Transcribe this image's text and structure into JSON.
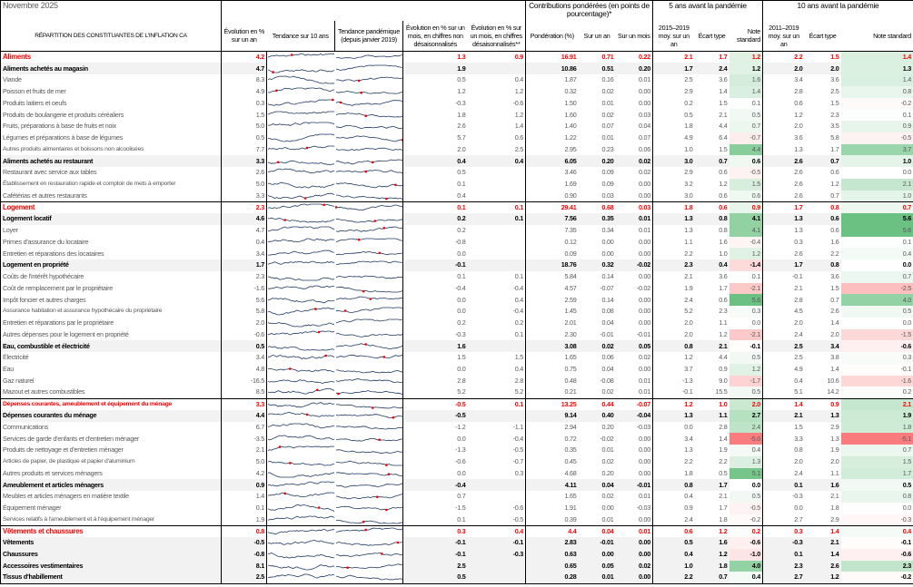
{
  "header": {
    "month": "Novembre 2025",
    "contrib": "Contributions pondérées (en points de pourcentage)*",
    "five": "5 ans avant la pandémie",
    "ten": "10 ans avant la pandémie",
    "cols": [
      "RÉPARTITION DES CONSTITUANTES DE L'INFLATION CA",
      "Évolution en % sur un an",
      "Tendance sur 10 ans",
      "Tendance pandémique (depuis janvier 2019)",
      "Évolution en % sur un mois, en chiffres non désaisonnalisés",
      "Évolution en % sur un mois, en chiffres désaisonnalisés**",
      "Pondération (%)",
      "Sur un an",
      "Sur un mois",
      "2015–2019 moy. sur un an",
      "Écart type",
      "Note standard",
      "2011–2019 moy. sur un an",
      "Écart type",
      "Note standard"
    ]
  },
  "colors": {
    "major": "#ff0000",
    "subtotal_bg": "#f2f2f2",
    "positive": "#63be7b",
    "negative": "#f8696b"
  },
  "rows": [
    [
      "Aliments",
      "M",
      "4.2",
      "1.3",
      "0.9",
      "16.91",
      "0.71",
      "0.22",
      "2.1",
      "1.7",
      "1.2",
      "2.2",
      "1.5",
      "1.4"
    ],
    [
      "Aliments achetés au magasin",
      "S",
      "4.7",
      "1.9",
      "",
      "10.86",
      "0.51",
      "0.20",
      "1.7",
      "2.4",
      "1.2",
      "2.0",
      "2.0",
      "1.3"
    ],
    [
      "Viande",
      "I",
      "8.3",
      "0.5",
      "0.4",
      "1.87",
      "0.16",
      "0.01",
      "2.5",
      "3.6",
      "1.6",
      "3.4",
      "3.6",
      "1.4"
    ],
    [
      "Poisson et fruits de mer",
      "I",
      "4.9",
      "1.2",
      "1.2",
      "0.32",
      "0.02",
      "0.00",
      "2.9",
      "1.4",
      "1.4",
      "2.8",
      "2.5",
      "0.8"
    ],
    [
      "Produits laitiers et oeufs",
      "I",
      "0.3",
      "-0.3",
      "-0.6",
      "1.50",
      "0.01",
      "0.00",
      "0.2",
      "1.5",
      "0.1",
      "0.6",
      "1.5",
      "-0.2"
    ],
    [
      "Produits de boulangerie et produits céréaliers",
      "I",
      "1.5",
      "1.8",
      "1.2",
      "1.60",
      "0.02",
      "0.03",
      "0.5",
      "2.1",
      "0.5",
      "1.2",
      "2.3",
      "0.1"
    ],
    [
      "Fruits, préparations à base de fruits et noix",
      "I",
      "5.0",
      "2.6",
      "1.4",
      "1.40",
      "0.07",
      "0.04",
      "1.8",
      "4.4",
      "0.7",
      "2.0",
      "3.5",
      "0.9"
    ],
    [
      "Légumes et préparations à base de légumes",
      "I",
      "0.5",
      "5.7",
      "0.6",
      "1.22",
      "0.01",
      "0.07",
      "4.9",
      "6.4",
      "-0.7",
      "3.6",
      "5.8",
      "-0.5"
    ],
    [
      "Autres produits alimentaires et boissons non alcoolisées",
      "I",
      "7.7",
      "2.0",
      "2.5",
      "2.95",
      "0.23",
      "0.06",
      "1.0",
      "1.5",
      "4.4",
      "1.3",
      "1.7",
      "3.7"
    ],
    [
      "Aliments achetés au restaurant",
      "S",
      "3.3",
      "0.4",
      "0.4",
      "6.05",
      "0.20",
      "0.02",
      "3.0",
      "0.7",
      "0.6",
      "2.6",
      "0.7",
      "1.0"
    ],
    [
      "Restaurant avec service aux tables",
      "I",
      "2.6",
      "0.5",
      "",
      "3.46",
      "0.09",
      "0.02",
      "2.9",
      "0.6",
      "-0.5",
      "2.6",
      "0.6",
      "0.0"
    ],
    [
      "Établissement en restauration rapide et comptoir de mets à emporter",
      "I",
      "5.0",
      "0.1",
      "",
      "1.69",
      "0.09",
      "0.00",
      "3.2",
      "1.2",
      "1.5",
      "2.6",
      "1.2",
      "2.1"
    ],
    [
      "Cafétérias et autres restaurants",
      "I",
      "3.3",
      "0.4",
      "",
      "0.90",
      "0.03",
      "0.00",
      "3.0",
      "0.6",
      "0.6",
      "2.6",
      "0.7",
      "1.0"
    ],
    [
      "Logement",
      "M",
      "2.3",
      "0.1",
      "0.1",
      "29.41",
      "0.68",
      "0.03",
      "1.8",
      "0.6",
      "0.9",
      "1.7",
      "0.8",
      "0.7"
    ],
    [
      "Logement locatif",
      "S",
      "4.6",
      "0.2",
      "0.1",
      "7.56",
      "0.35",
      "0.01",
      "1.3",
      "0.8",
      "4.1",
      "1.3",
      "0.6",
      "5.6"
    ],
    [
      "Loyer",
      "I",
      "4.7",
      "0.2",
      "",
      "7.35",
      "0.34",
      "0.01",
      "1.3",
      "0.8",
      "4.1",
      "1.3",
      "0.6",
      "5.6"
    ],
    [
      "Primes d'assurance du locataire",
      "I",
      "0.4",
      "-0.8",
      "",
      "0.12",
      "0.00",
      "0.00",
      "1.1",
      "1.6",
      "-0.4",
      "0.3",
      "1.6",
      "0.1"
    ],
    [
      "Entretien et réparations des locataires",
      "I",
      "3.4",
      "0.0",
      "",
      "0.09",
      "0.00",
      "0.00",
      "2.2",
      "1.0",
      "1.2",
      "2.6",
      "2.2",
      "0.4"
    ],
    [
      "Logement en propriété",
      "S",
      "1.7",
      "-0.1",
      "",
      "18.76",
      "0.32",
      "-0.02",
      "2.3",
      "0.4",
      "-1.4",
      "1.7",
      "0.8",
      "0.0"
    ],
    [
      "Coûts de l'intérêt hypothécaire",
      "I",
      "2.3",
      "0.1",
      "0.1",
      "5.84",
      "0.14",
      "0.00",
      "2.1",
      "3.6",
      "0.1",
      "-0.1",
      "3.6",
      "0.7"
    ],
    [
      "Coût de remplacement par le propriétaire",
      "I",
      "-1.6",
      "-0.4",
      "-0.4",
      "4.57",
      "-0.07",
      "-0.02",
      "1.9",
      "1.7",
      "-2.1",
      "2.1",
      "1.5",
      "-2.5"
    ],
    [
      "Impôt foncier et autres charges",
      "I",
      "5.6",
      "0.0",
      "0.4",
      "2.59",
      "0.14",
      "0.00",
      "2.4",
      "0.6",
      "5.6",
      "2.8",
      "0.7",
      "4.0"
    ],
    [
      "Assurance habitation et assurance hypothécaire du propriétaire",
      "I",
      "5.8",
      "0.0",
      "-0.4",
      "1.45",
      "0.08",
      "0.00",
      "5.2",
      "2.3",
      "0.3",
      "4.5",
      "2.6",
      "0.5"
    ],
    [
      "Entretien et réparations par le propriétaire",
      "I",
      "2.0",
      "0.2",
      "0.2",
      "2.01",
      "0.04",
      "0.00",
      "2.0",
      "1.1",
      "0.0",
      "2.0",
      "1.4",
      "0.0"
    ],
    [
      "Autres dépenses pour le logement en propriété",
      "I",
      "-0.6",
      "-0.3",
      "0.1",
      "2.30",
      "-0.01",
      "-0.01",
      "2.0",
      "1.2",
      "-2.1",
      "2.4",
      "2.0",
      "-1.5"
    ],
    [
      "Eau, combustible et électricité",
      "S",
      "0.5",
      "1.6",
      "",
      "3.08",
      "0.02",
      "0.05",
      "0.8",
      "2.1",
      "-0.1",
      "2.5",
      "3.4",
      "-0.6"
    ],
    [
      "Électricité",
      "I",
      "3.4",
      "1.5",
      "1.5",
      "1.65",
      "0.06",
      "0.02",
      "1.2",
      "4.4",
      "0.5",
      "2.5",
      "3.8",
      "0.3"
    ],
    [
      "Eau",
      "I",
      "4.8",
      "0.0",
      "0.4",
      "0.75",
      "0.04",
      "0.00",
      "3.7",
      "0.9",
      "1.2",
      "4.9",
      "1.4",
      "-0.1"
    ],
    [
      "Gaz naturel",
      "I",
      "-16.5",
      "2.8",
      "2.8",
      "0.48",
      "-0.08",
      "0.01",
      "-1.3",
      "9.0",
      "-1.7",
      "0.4",
      "10.6",
      "-1.6"
    ],
    [
      "Mazout et autres combustibles",
      "I",
      "8.5",
      "5.2",
      "5.2",
      "0.21",
      "0.02",
      "0.01",
      "-0.1",
      "15.5",
      "0.5",
      "5.1",
      "14.2",
      "0.2"
    ],
    [
      "Dépenses courantes, ameublement et équipement du ménage",
      "M",
      "3.3",
      "-0.5",
      "0.1",
      "13.25",
      "0.44",
      "-0.07",
      "1.2",
      "1.0",
      "2.0",
      "1.4",
      "0.9",
      "2.1"
    ],
    [
      "Dépenses courantes du ménage",
      "S",
      "4.4",
      "-0.5",
      "",
      "9.14",
      "0.40",
      "-0.04",
      "1.3",
      "1.1",
      "2.7",
      "2.1",
      "1.3",
      "1.9"
    ],
    [
      "Communications",
      "I",
      "6.7",
      "-1.2",
      "-1.1",
      "2.94",
      "0.20",
      "-0.03",
      "0.0",
      "2.8",
      "2.4",
      "1.5",
      "2.9",
      "1.8"
    ],
    [
      "Services de garde d'enfants et d'entretien ménager",
      "I",
      "-3.5",
      "0.0",
      "-0.4",
      "0.72",
      "-0.02",
      "0.00",
      "3.4",
      "1.4",
      "-5.0",
      "3.3",
      "1.3",
      "-5.1"
    ],
    [
      "Produits de nettoyage et d'entretien ménager",
      "I",
      "2.1",
      "-1.3",
      "-0.5",
      "0.35",
      "0.01",
      "0.00",
      "1.3",
      "1.9",
      "0.4",
      "0.8",
      "1.9",
      "0.7"
    ],
    [
      "Articles de papier, de plastique et papier d'aluminium",
      "I",
      "5.0",
      "-0.6",
      "-0.7",
      "0.45",
      "0.02",
      "0.00",
      "2.2",
      "2.2",
      "1.3",
      "2.0",
      "2.0",
      "1.5"
    ],
    [
      "Autres produits et services ménagers",
      "I",
      "4.2",
      "0.0",
      "0.3",
      "4.68",
      "0.20",
      "0.00",
      "1.8",
      "0.5",
      "5.1",
      "2.4",
      "1.1",
      "1.7"
    ],
    [
      "Ameublement et articles ménagers",
      "S",
      "0.9",
      "-0.4",
      "",
      "4.11",
      "0.04",
      "-0.01",
      "0.8",
      "1.7",
      "0.0",
      "0.1",
      "1.6",
      "0.5"
    ],
    [
      "Meubles et articles ménagers en matière textile",
      "I",
      "1.4",
      "0.7",
      "",
      "1.65",
      "0.02",
      "0.01",
      "0.4",
      "2.1",
      "0.5",
      "-0.3",
      "2.1",
      "0.8"
    ],
    [
      "Équipement ménager",
      "I",
      "0.1",
      "-1.5",
      "-0.6",
      "1.91",
      "0.00",
      "-0.03",
      "0.9",
      "1.7",
      "-0.5",
      "0.0",
      "1.8",
      "0.0"
    ],
    [
      "Services relatifs à l'ameublement et à l'équipement ménager",
      "I",
      "1.9",
      "0.1",
      "-0.5",
      "0.39",
      "0.01",
      "0.00",
      "2.4",
      "1.8",
      "-0.2",
      "2.7",
      "2.9",
      "-0.3"
    ],
    [
      "Vêtements et chaussures",
      "M",
      "0.8",
      "0.3",
      "0.4",
      "4.4",
      "0.04",
      "0.01",
      "0.6",
      "1.2",
      "0.2",
      "0.3",
      "1.4",
      "0.4"
    ],
    [
      "Vêtements",
      "S",
      "-0.5",
      "-0.1",
      "-0.1",
      "2.83",
      "-0.01",
      "0.00",
      "0.5",
      "1.6",
      "-0.6",
      "-0.3",
      "2.1",
      "-0.1"
    ],
    [
      "Chaussures",
      "S",
      "-0.8",
      "-0.1",
      "-0.3",
      "0.63",
      "0.00",
      "0.00",
      "0.4",
      "1.2",
      "-1.0",
      "0.1",
      "1.4",
      "-0.6"
    ],
    [
      "Accessoires vestimentaires",
      "S",
      "8.1",
      "2.5",
      "",
      "0.65",
      "0.05",
      "0.02",
      "1.0",
      "1.8",
      "4.0",
      "2.3",
      "2.6",
      "2.3"
    ],
    [
      "Tissus d'habillement",
      "S",
      "2.5",
      "0.5",
      "",
      "0.28",
      "0.01",
      "0.00",
      "2.2",
      "0.7",
      "0.4",
      "2.7",
      "1.2",
      "-0.2"
    ]
  ]
}
